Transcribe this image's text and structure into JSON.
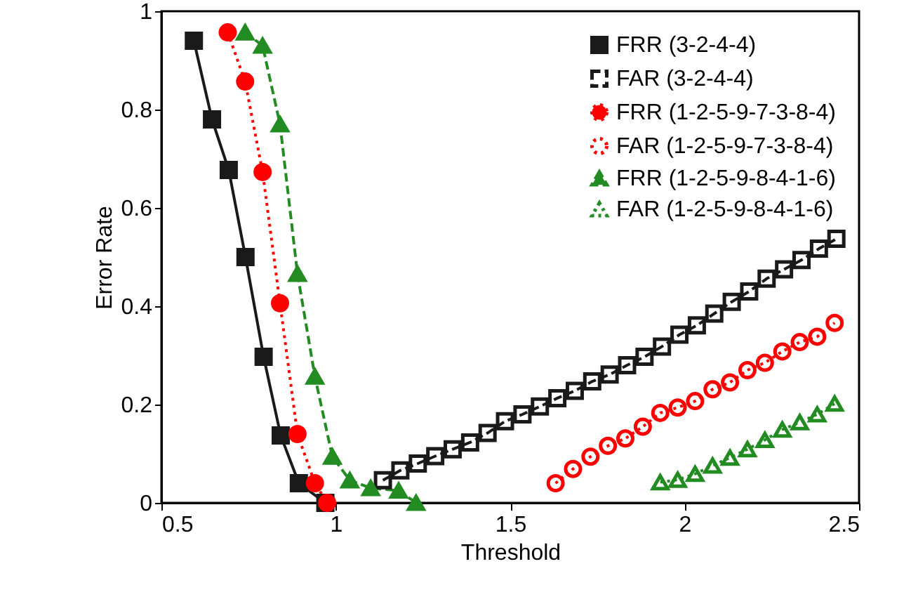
{
  "chart_data": {
    "type": "line",
    "xlabel": "Threshold",
    "ylabel": "Error Rate",
    "xlim": [
      0.5,
      2.5
    ],
    "xticks": [
      0.5,
      1,
      1.5,
      2,
      2.5
    ],
    "ylim": [
      0,
      1
    ],
    "yticks": [
      0,
      0.2,
      0.4,
      0.6,
      0.8,
      1
    ],
    "grid": false,
    "legend": "top right",
    "series": [
      {
        "name": "FRR (3-2-4-4)",
        "color": "#1a1a1a",
        "marker": "square",
        "line_style": "solid",
        "x": [
          0.593,
          0.645,
          0.693,
          0.741,
          0.793,
          0.842,
          0.894,
          0.97
        ],
        "values": [
          0.94,
          0.78,
          0.677,
          0.5,
          0.297,
          0.137,
          0.04,
          0
        ]
      },
      {
        "name": "FAR (3-2-4-4)",
        "color": "#1a1a1a",
        "marker": "square-open",
        "line_style": "dashed",
        "x": [
          1.135,
          1.185,
          1.235,
          1.285,
          1.335,
          1.385,
          1.435,
          1.485,
          1.535,
          1.585,
          1.635,
          1.685,
          1.735,
          1.785,
          1.835,
          1.885,
          1.935,
          1.985,
          2.035,
          2.085,
          2.135,
          2.185,
          2.235,
          2.285,
          2.335,
          2.385,
          2.435
        ],
        "values": [
          0.046,
          0.066,
          0.08,
          0.095,
          0.109,
          0.123,
          0.142,
          0.166,
          0.18,
          0.196,
          0.213,
          0.228,
          0.247,
          0.261,
          0.28,
          0.297,
          0.318,
          0.342,
          0.361,
          0.385,
          0.409,
          0.43,
          0.456,
          0.475,
          0.494,
          0.517,
          0.537
        ]
      },
      {
        "name": "FRR (1-2-5-9-7-3-8-4)",
        "color": "#ff0000",
        "marker": "circle",
        "line_style": "dotted",
        "x": [
          0.69,
          0.74,
          0.79,
          0.84,
          0.89,
          0.94,
          0.975
        ],
        "values": [
          0.957,
          0.857,
          0.673,
          0.406,
          0.14,
          0.04,
          0
        ]
      },
      {
        "name": "FAR (1-2-5-9-7-3-8-4)",
        "color": "#ff0000",
        "marker": "circle-open",
        "line_style": "dotted",
        "x": [
          1.63,
          1.68,
          1.73,
          1.78,
          1.83,
          1.88,
          1.93,
          1.98,
          2.03,
          2.08,
          2.13,
          2.18,
          2.23,
          2.28,
          2.33,
          2.38,
          2.43
        ],
        "values": [
          0.04,
          0.069,
          0.094,
          0.116,
          0.131,
          0.155,
          0.183,
          0.194,
          0.207,
          0.231,
          0.245,
          0.27,
          0.285,
          0.308,
          0.327,
          0.338,
          0.366
        ]
      },
      {
        "name": "FRR (1-2-5-9-8-4-1-6)",
        "color": "#228b22",
        "marker": "triangle",
        "line_style": "dashed",
        "x": [
          0.74,
          0.79,
          0.84,
          0.89,
          0.94,
          0.99,
          1.04,
          1.1,
          1.18,
          1.23
        ],
        "values": [
          0.957,
          0.93,
          0.77,
          0.466,
          0.257,
          0.094,
          0.046,
          0.03,
          0.025,
          0
        ]
      },
      {
        "name": "FAR (1-2-5-9-8-4-1-6)",
        "color": "#228b22",
        "marker": "triangle-open",
        "line_style": "dotted",
        "x": [
          1.93,
          1.98,
          2.03,
          2.08,
          2.13,
          2.18,
          2.23,
          2.28,
          2.33,
          2.38,
          2.43
        ],
        "values": [
          0.042,
          0.047,
          0.059,
          0.076,
          0.092,
          0.109,
          0.128,
          0.149,
          0.164,
          0.18,
          0.202
        ]
      }
    ]
  }
}
